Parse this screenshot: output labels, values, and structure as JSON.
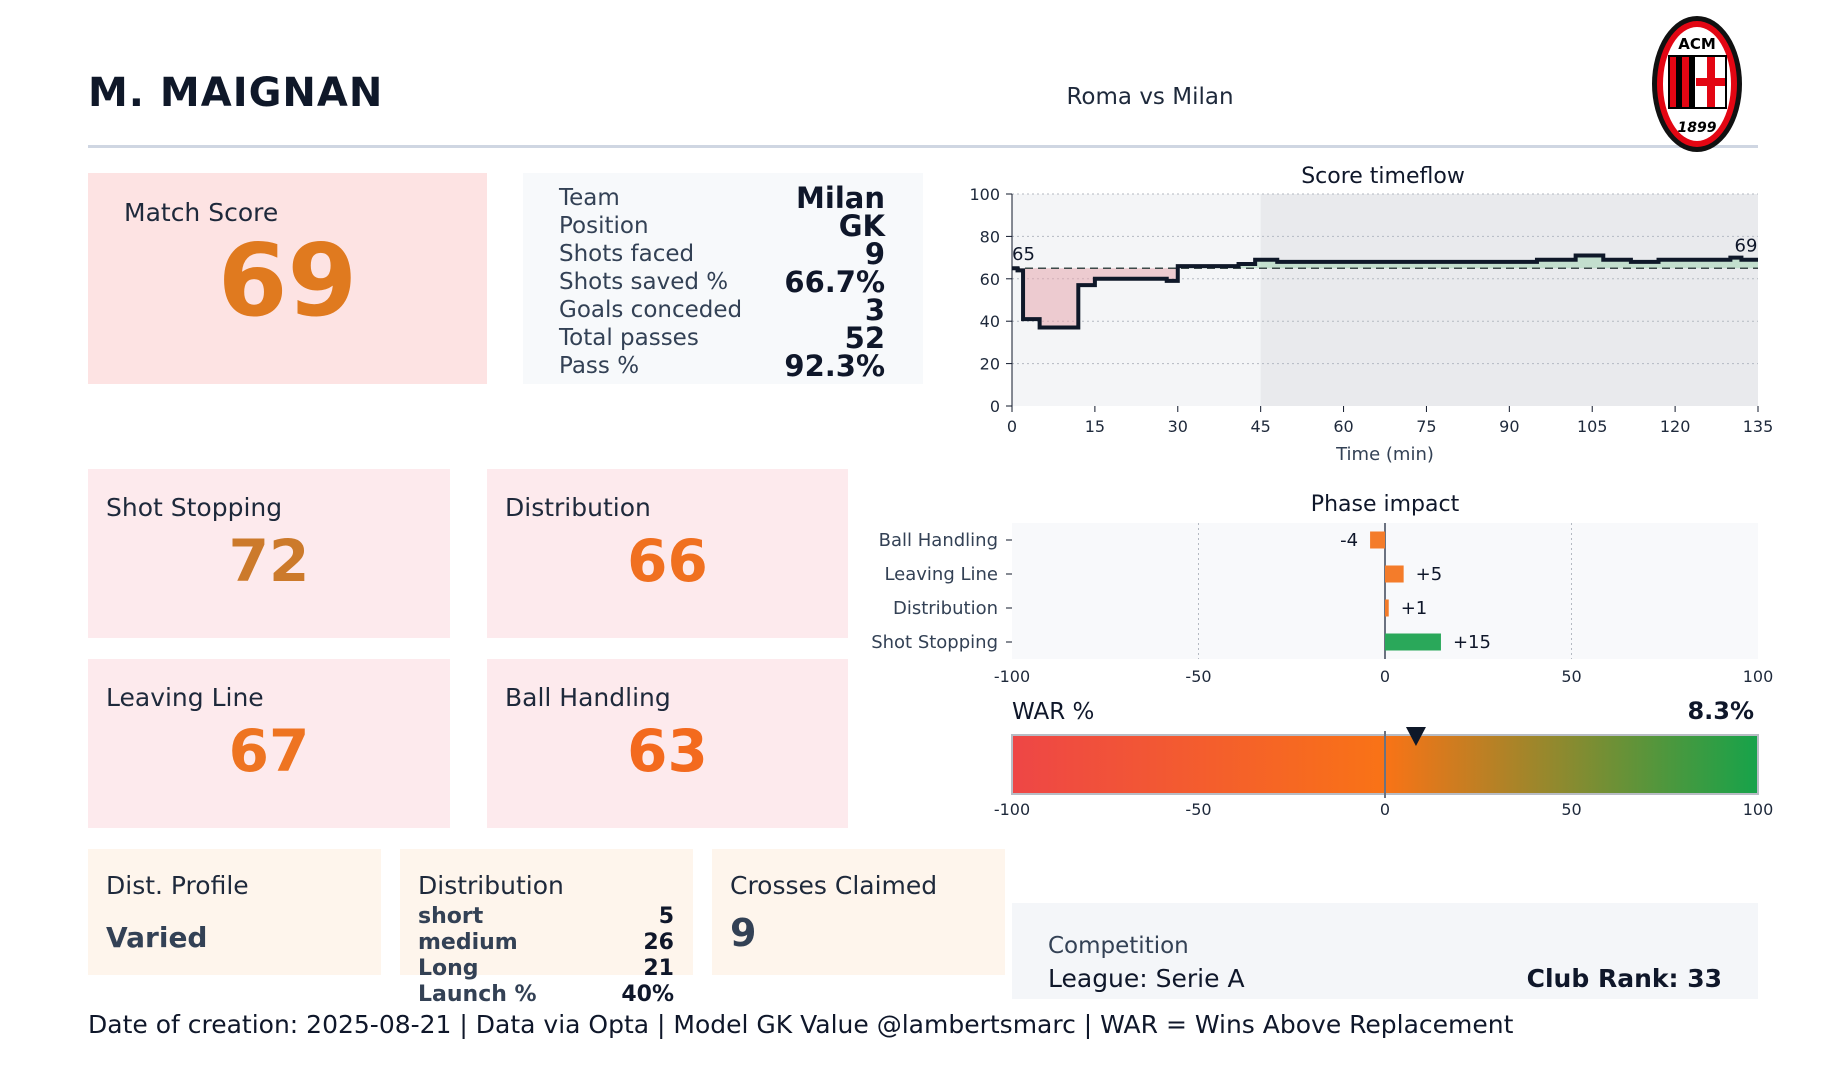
{
  "header": {
    "player_name": "M. MAIGNAN",
    "match_title": "Roma vs Milan",
    "club_logo": {
      "icon": "ac-milan-crest-icon",
      "top_text": "ACM",
      "bottom_text": "1899",
      "colors": [
        "#e30613",
        "#000000",
        "#ffffff"
      ]
    }
  },
  "match_score": {
    "label": "Match Score",
    "value": "69",
    "color": "#e07a1f"
  },
  "info": [
    {
      "label": "Team",
      "value": "Milan"
    },
    {
      "label": "Position",
      "value": "GK"
    },
    {
      "label": "Shots faced",
      "value": "9"
    },
    {
      "label": "Shots saved %",
      "value": "66.7%"
    },
    {
      "label": "Goals conceded",
      "value": "3"
    },
    {
      "label": "Total passes",
      "value": "52"
    },
    {
      "label": "Pass %",
      "value": "92.3%"
    }
  ],
  "subscores": [
    {
      "label": "Shot Stopping",
      "value": "72",
      "color": "#cc7a2b"
    },
    {
      "label": "Distribution",
      "value": "66",
      "color": "#f07020"
    },
    {
      "label": "Leaving Line",
      "value": "67",
      "color": "#ee7421"
    },
    {
      "label": "Ball Handling",
      "value": "63",
      "color": "#f36a1e"
    }
  ],
  "dist_profile": {
    "label": "Dist. Profile",
    "value": "Varied"
  },
  "distribution": {
    "label": "Distribution",
    "rows": [
      {
        "label": "short",
        "value": "5"
      },
      {
        "label": "medium",
        "value": "26"
      },
      {
        "label": "Long",
        "value": "21"
      },
      {
        "label": "Launch %",
        "value": "40%"
      }
    ]
  },
  "crosses": {
    "label": "Crosses Claimed",
    "value": "9"
  },
  "competition": {
    "label": "Competition",
    "value": "League: Serie A",
    "rank": "Club Rank: 33"
  },
  "footer": "Date of creation: 2025-08-21 | Data via Opta | Model GK Value @lambertsmarc | WAR = Wins Above Replacement",
  "chart_data": [
    {
      "type": "line",
      "title": "Score timeflow",
      "xlabel": "Time (min)",
      "ylabel": "",
      "xlim": [
        0,
        135
      ],
      "ylim": [
        0,
        100
      ],
      "xticks": [
        0,
        15,
        30,
        45,
        60,
        75,
        90,
        105,
        120,
        135
      ],
      "yticks": [
        0,
        20,
        40,
        60,
        80,
        100
      ],
      "baseline": 65,
      "second_half_start": 45,
      "start_label": "65",
      "end_label": "69",
      "step_points": [
        [
          0,
          65
        ],
        [
          1,
          64
        ],
        [
          2,
          41
        ],
        [
          5,
          37
        ],
        [
          12,
          57
        ],
        [
          15,
          60
        ],
        [
          28,
          59
        ],
        [
          30,
          66
        ],
        [
          35,
          66
        ],
        [
          41,
          67
        ],
        [
          44,
          69
        ],
        [
          48,
          68
        ],
        [
          68,
          68
        ],
        [
          80,
          68
        ],
        [
          95,
          69
        ],
        [
          102,
          71
        ],
        [
          107,
          69
        ],
        [
          112,
          68
        ],
        [
          117,
          69
        ],
        [
          120,
          69
        ],
        [
          130,
          70
        ],
        [
          132,
          69
        ],
        [
          135,
          69
        ]
      ]
    },
    {
      "type": "bar",
      "orientation": "horizontal",
      "title": "Phase impact",
      "categories": [
        "Ball Handling",
        "Leaving Line",
        "Distribution",
        "Shot Stopping"
      ],
      "values": [
        -4,
        5,
        1,
        15
      ],
      "value_labels": [
        "-4",
        "+5",
        "+1",
        "+15"
      ],
      "colors": [
        "#f47c2a",
        "#f47c2a",
        "#f47c2a",
        "#2aa85a"
      ],
      "xlim": [
        -100,
        100
      ],
      "xticks": [
        -100,
        -50,
        0,
        50,
        100
      ]
    },
    {
      "type": "gauge",
      "title": "WAR %",
      "value": 8.3,
      "value_label": "8.3%",
      "xlim": [
        -100,
        100
      ],
      "xticks": [
        -100,
        -50,
        0,
        50,
        100
      ],
      "gradient": [
        "#ee4646",
        "#f97316",
        "#16a34a"
      ]
    }
  ]
}
